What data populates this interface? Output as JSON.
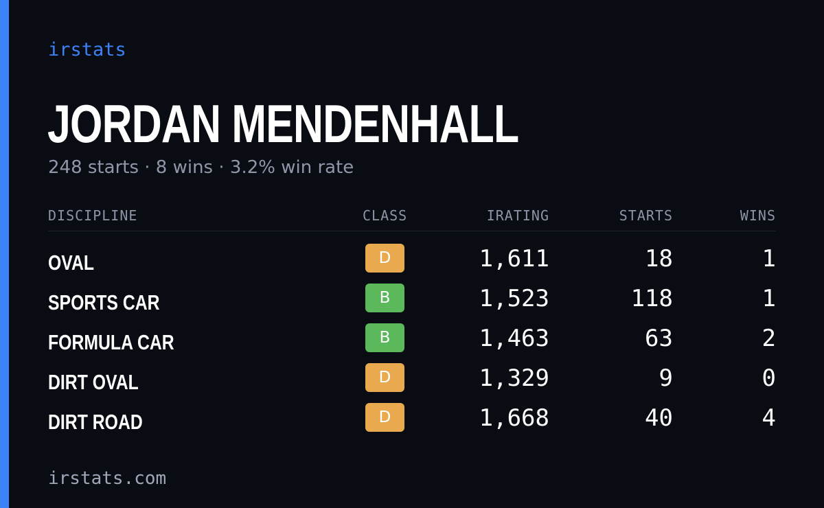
{
  "brand": "irstats",
  "driver": {
    "name": "JORDAN MENDENHALL",
    "summary": "248 starts · 8 wins · 3.2% win rate"
  },
  "table": {
    "headers": {
      "discipline": "DISCIPLINE",
      "class": "CLASS",
      "irating": "IRATING",
      "starts": "STARTS",
      "wins": "WINS"
    },
    "rows": [
      {
        "discipline": "OVAL",
        "class": "D",
        "irating": "1,611",
        "starts": "18",
        "wins": "1"
      },
      {
        "discipline": "SPORTS CAR",
        "class": "B",
        "irating": "1,523",
        "starts": "118",
        "wins": "1"
      },
      {
        "discipline": "FORMULA CAR",
        "class": "B",
        "irating": "1,463",
        "starts": "63",
        "wins": "2"
      },
      {
        "discipline": "DIRT OVAL",
        "class": "D",
        "irating": "1,329",
        "starts": "9",
        "wins": "0"
      },
      {
        "discipline": "DIRT ROAD",
        "class": "D",
        "irating": "1,668",
        "starts": "40",
        "wins": "4"
      }
    ]
  },
  "footer": "irstats.com",
  "colors": {
    "background": "#0a0c14",
    "accent": "#3b82f6",
    "class_D": "#e9a94f",
    "class_B": "#5bb85b"
  }
}
